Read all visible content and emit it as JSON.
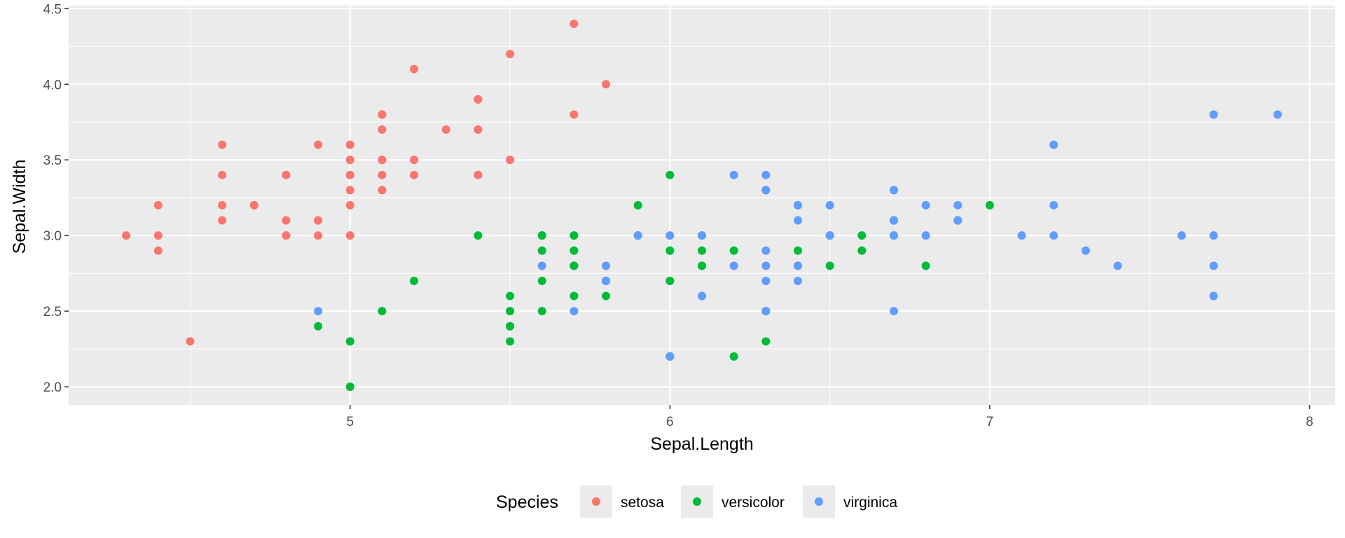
{
  "chart_data": {
    "type": "scatter",
    "title": "",
    "xlabel": "Sepal.Length",
    "ylabel": "Sepal.Width",
    "xlim": [
      4.12,
      8.08
    ],
    "ylim": [
      1.88,
      4.52
    ],
    "x_ticks": [
      5,
      6,
      7,
      8
    ],
    "x_tick_labels": [
      "5",
      "6",
      "7",
      "8"
    ],
    "y_ticks": [
      2.0,
      2.5,
      3.0,
      3.5,
      4.0,
      4.5
    ],
    "y_tick_labels": [
      "2.0",
      "2.5",
      "3.0",
      "3.5",
      "4.0",
      "4.5"
    ],
    "grid": true,
    "legend": {
      "title": "Species",
      "position": "bottom"
    },
    "series": [
      {
        "name": "setosa",
        "color": "#F8766D",
        "points": [
          [
            5.1,
            3.5
          ],
          [
            4.9,
            3.0
          ],
          [
            4.7,
            3.2
          ],
          [
            4.6,
            3.1
          ],
          [
            5.0,
            3.6
          ],
          [
            5.4,
            3.9
          ],
          [
            4.6,
            3.4
          ],
          [
            5.0,
            3.4
          ],
          [
            4.4,
            2.9
          ],
          [
            4.9,
            3.1
          ],
          [
            5.4,
            3.7
          ],
          [
            4.8,
            3.4
          ],
          [
            4.8,
            3.0
          ],
          [
            4.3,
            3.0
          ],
          [
            5.8,
            4.0
          ],
          [
            5.7,
            4.4
          ],
          [
            5.4,
            3.9
          ],
          [
            5.1,
            3.5
          ],
          [
            5.7,
            3.8
          ],
          [
            5.1,
            3.8
          ],
          [
            5.4,
            3.4
          ],
          [
            5.1,
            3.7
          ],
          [
            4.6,
            3.6
          ],
          [
            5.1,
            3.3
          ],
          [
            4.8,
            3.4
          ],
          [
            5.0,
            3.0
          ],
          [
            5.0,
            3.4
          ],
          [
            5.2,
            3.5
          ],
          [
            5.2,
            3.4
          ],
          [
            4.7,
            3.2
          ],
          [
            4.8,
            3.1
          ],
          [
            5.4,
            3.4
          ],
          [
            5.2,
            4.1
          ],
          [
            5.5,
            4.2
          ],
          [
            4.9,
            3.1
          ],
          [
            5.0,
            3.2
          ],
          [
            5.5,
            3.5
          ],
          [
            4.9,
            3.6
          ],
          [
            4.4,
            3.0
          ],
          [
            5.1,
            3.4
          ],
          [
            5.0,
            3.5
          ],
          [
            4.5,
            2.3
          ],
          [
            4.4,
            3.2
          ],
          [
            5.0,
            3.5
          ],
          [
            5.1,
            3.8
          ],
          [
            4.8,
            3.0
          ],
          [
            5.1,
            3.8
          ],
          [
            4.6,
            3.2
          ],
          [
            5.3,
            3.7
          ],
          [
            5.0,
            3.3
          ]
        ]
      },
      {
        "name": "versicolor",
        "color": "#00BA38",
        "points": [
          [
            7.0,
            3.2
          ],
          [
            6.4,
            3.2
          ],
          [
            6.9,
            3.1
          ],
          [
            5.5,
            2.3
          ],
          [
            6.5,
            2.8
          ],
          [
            5.7,
            2.8
          ],
          [
            6.3,
            3.3
          ],
          [
            4.9,
            2.4
          ],
          [
            6.6,
            2.9
          ],
          [
            5.2,
            2.7
          ],
          [
            5.0,
            2.0
          ],
          [
            5.9,
            3.0
          ],
          [
            6.0,
            2.2
          ],
          [
            6.1,
            2.9
          ],
          [
            5.6,
            2.9
          ],
          [
            6.7,
            3.1
          ],
          [
            5.6,
            3.0
          ],
          [
            5.8,
            2.7
          ],
          [
            6.2,
            2.2
          ],
          [
            5.6,
            2.5
          ],
          [
            5.9,
            3.2
          ],
          [
            6.1,
            2.8
          ],
          [
            6.3,
            2.5
          ],
          [
            6.1,
            2.8
          ],
          [
            6.4,
            2.9
          ],
          [
            6.6,
            3.0
          ],
          [
            6.8,
            2.8
          ],
          [
            6.7,
            3.0
          ],
          [
            6.0,
            2.9
          ],
          [
            5.7,
            2.6
          ],
          [
            5.5,
            2.4
          ],
          [
            5.5,
            2.4
          ],
          [
            5.8,
            2.7
          ],
          [
            6.0,
            2.7
          ],
          [
            5.4,
            3.0
          ],
          [
            6.0,
            3.4
          ],
          [
            6.7,
            3.1
          ],
          [
            6.3,
            2.3
          ],
          [
            5.6,
            3.0
          ],
          [
            5.5,
            2.5
          ],
          [
            5.5,
            2.6
          ],
          [
            6.1,
            3.0
          ],
          [
            5.8,
            2.6
          ],
          [
            5.0,
            2.3
          ],
          [
            5.6,
            2.7
          ],
          [
            5.7,
            3.0
          ],
          [
            5.7,
            2.9
          ],
          [
            6.2,
            2.9
          ],
          [
            5.1,
            2.5
          ],
          [
            5.7,
            2.8
          ]
        ]
      },
      {
        "name": "virginica",
        "color": "#619CFF",
        "points": [
          [
            6.3,
            3.3
          ],
          [
            5.8,
            2.7
          ],
          [
            7.1,
            3.0
          ],
          [
            6.3,
            2.9
          ],
          [
            6.5,
            3.0
          ],
          [
            7.6,
            3.0
          ],
          [
            4.9,
            2.5
          ],
          [
            7.3,
            2.9
          ],
          [
            6.7,
            2.5
          ],
          [
            7.2,
            3.6
          ],
          [
            6.5,
            3.2
          ],
          [
            6.4,
            2.7
          ],
          [
            6.8,
            3.0
          ],
          [
            5.7,
            2.5
          ],
          [
            5.8,
            2.8
          ],
          [
            6.4,
            3.2
          ],
          [
            6.5,
            3.0
          ],
          [
            7.7,
            3.8
          ],
          [
            7.7,
            2.6
          ],
          [
            6.0,
            2.2
          ],
          [
            6.9,
            3.2
          ],
          [
            5.6,
            2.8
          ],
          [
            7.7,
            2.8
          ],
          [
            6.3,
            2.7
          ],
          [
            6.7,
            3.3
          ],
          [
            7.2,
            3.2
          ],
          [
            6.2,
            2.8
          ],
          [
            6.1,
            3.0
          ],
          [
            6.4,
            2.8
          ],
          [
            7.2,
            3.0
          ],
          [
            7.4,
            2.8
          ],
          [
            7.9,
            3.8
          ],
          [
            6.4,
            2.8
          ],
          [
            6.3,
            2.8
          ],
          [
            6.1,
            2.6
          ],
          [
            7.7,
            3.0
          ],
          [
            6.3,
            3.4
          ],
          [
            6.4,
            3.1
          ],
          [
            6.0,
            3.0
          ],
          [
            6.9,
            3.1
          ],
          [
            6.7,
            3.1
          ],
          [
            6.9,
            3.1
          ],
          [
            5.8,
            2.7
          ],
          [
            6.8,
            3.2
          ],
          [
            6.7,
            3.3
          ],
          [
            6.7,
            3.0
          ],
          [
            6.3,
            2.5
          ],
          [
            6.5,
            3.0
          ],
          [
            6.2,
            3.4
          ],
          [
            5.9,
            3.0
          ]
        ]
      }
    ]
  }
}
